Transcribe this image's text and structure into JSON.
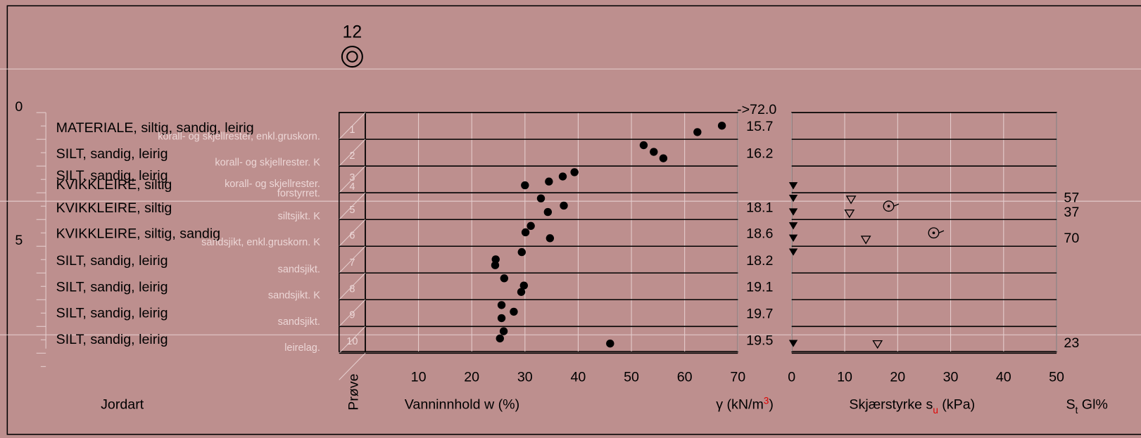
{
  "borehole": "12",
  "depth_ticks": [
    0,
    1,
    2,
    3,
    4,
    5,
    6,
    7,
    8,
    9
  ],
  "depth_labels": [
    0,
    5
  ],
  "layer_depths": [
    0,
    1,
    2,
    3,
    4,
    5,
    6,
    7,
    8,
    9
  ],
  "samples": [
    {
      "number": "1",
      "depth": 0.6,
      "soil": "MATERIALE, siltig, sandig, leirig",
      "note": "korall- og skjellrester, enkl.gruskorn."
    },
    {
      "number": "2",
      "depth": 1.57,
      "soil": "SILT, sandig, leirig",
      "note": "korall- og skjellrester. K"
    },
    {
      "number": "3",
      "depth": 2.38,
      "soil": "SILT, sandig, leirig",
      "note": "korall- og skjellrester."
    },
    {
      "number": "4",
      "depth": 2.73,
      "soil": "KVIKKLEIRE, siltig",
      "note": "forstyrret."
    },
    {
      "number": "5",
      "depth": 3.59,
      "soil": "KVIKKLEIRE, siltig",
      "note": "siltsjikt. K"
    },
    {
      "number": "6",
      "depth": 4.56,
      "soil": "KVIKKLEIRE, siltig, sandig",
      "note": "sandsjikt, enkl.gruskorn. K"
    },
    {
      "number": "7",
      "depth": 5.57,
      "soil": "SILT, sandig, leirig",
      "note": "sandsjikt."
    },
    {
      "number": "8",
      "depth": 6.55,
      "soil": "SILT, sandig, leirig",
      "note": "sandsjikt. K"
    },
    {
      "number": "9",
      "depth": 7.53,
      "soil": "SILT, sandig, leirig",
      "note": "sandsjikt."
    },
    {
      "number": "10",
      "depth": 8.51,
      "soil": "SILT, sandig, leirig",
      "note": "leirelag."
    }
  ],
  "water": {
    "xlim": [
      0,
      70
    ],
    "xticks": [
      10,
      20,
      30,
      40,
      50,
      60,
      70
    ],
    "points": [
      {
        "w": 67.0,
        "depth": 0.49
      },
      {
        "w": 62.4,
        "depth": 0.73
      },
      {
        "w": 52.3,
        "depth": 1.22
      },
      {
        "w": 54.2,
        "depth": 1.47
      },
      {
        "w": 56.0,
        "depth": 1.71
      },
      {
        "w": 39.3,
        "depth": 2.23
      },
      {
        "w": 37.1,
        "depth": 2.39
      },
      {
        "w": 34.5,
        "depth": 2.58
      },
      {
        "w": 30.0,
        "depth": 2.72
      },
      {
        "w": 33.0,
        "depth": 3.21
      },
      {
        "w": 37.3,
        "depth": 3.48
      },
      {
        "w": 34.3,
        "depth": 3.72
      },
      {
        "w": 31.1,
        "depth": 4.24
      },
      {
        "w": 30.1,
        "depth": 4.48
      },
      {
        "w": 34.7,
        "depth": 4.7
      },
      {
        "w": 29.4,
        "depth": 5.22
      },
      {
        "w": 24.5,
        "depth": 5.49
      },
      {
        "w": 24.4,
        "depth": 5.71
      },
      {
        "w": 26.1,
        "depth": 6.2
      },
      {
        "w": 29.8,
        "depth": 6.47
      },
      {
        "w": 29.3,
        "depth": 6.71
      },
      {
        "w": 25.6,
        "depth": 7.2
      },
      {
        "w": 27.9,
        "depth": 7.45
      },
      {
        "w": 25.6,
        "depth": 7.69
      },
      {
        "w": 26.0,
        "depth": 8.18
      },
      {
        "w": 25.3,
        "depth": 8.45
      },
      {
        "w": 46.0,
        "depth": 8.64
      }
    ]
  },
  "unit_weight": {
    "overflow": "->72.0",
    "values": [
      {
        "value": 15.7,
        "depth": 0.46
      },
      {
        "value": 16.2,
        "depth": 1.47
      },
      {
        "value": 18.1,
        "depth": 3.5
      },
      {
        "value": 18.6,
        "depth": 4.48
      },
      {
        "value": 18.2,
        "depth": 5.49
      },
      {
        "value": 19.1,
        "depth": 6.47
      },
      {
        "value": 19.7,
        "depth": 7.47
      },
      {
        "value": 19.5,
        "depth": 8.47
      }
    ]
  },
  "shear": {
    "xlim": [
      0,
      50
    ],
    "xticks": [
      0,
      10,
      20,
      30,
      40,
      50
    ],
    "cone_remoulded": [
      {
        "value": 0.3,
        "depth": 2.74
      },
      {
        "value": 0.3,
        "depth": 3.21
      },
      {
        "value": 0.3,
        "depth": 3.72
      },
      {
        "value": 0.3,
        "depth": 4.24
      },
      {
        "value": 0.3,
        "depth": 4.7
      },
      {
        "value": 0.3,
        "depth": 5.22
      },
      {
        "value": 0.3,
        "depth": 8.64
      }
    ],
    "cone_undisturbed": [
      {
        "value": 11.2,
        "depth": 3.26
      },
      {
        "value": 10.9,
        "depth": 3.78
      },
      {
        "value": 14.0,
        "depth": 4.76
      },
      {
        "value": 16.2,
        "depth": 8.67
      }
    ],
    "unconfined": [
      {
        "value": 18.3,
        "depth": 3.5
      },
      {
        "value": 26.8,
        "depth": 4.5
      }
    ]
  },
  "sensitivity": [
    {
      "value": 57,
      "depth": 3.13
    },
    {
      "value": 37,
      "depth": 3.67
    },
    {
      "value": 70,
      "depth": 4.65
    },
    {
      "value": 23,
      "depth": 8.56
    }
  ],
  "labels": {
    "soil": "Jordart",
    "sample": "Prøve",
    "water": "Vanninnhold w (%)",
    "gamma": "γ (kN/m",
    "gamma_sup": "3",
    "gamma_end": ")",
    "shear": "Skjærstyrke s",
    "shear_sub": "u",
    "shear_end": " (kPa)",
    "st": "S",
    "st_sub": "t",
    "st_end": " Gl%"
  }
}
